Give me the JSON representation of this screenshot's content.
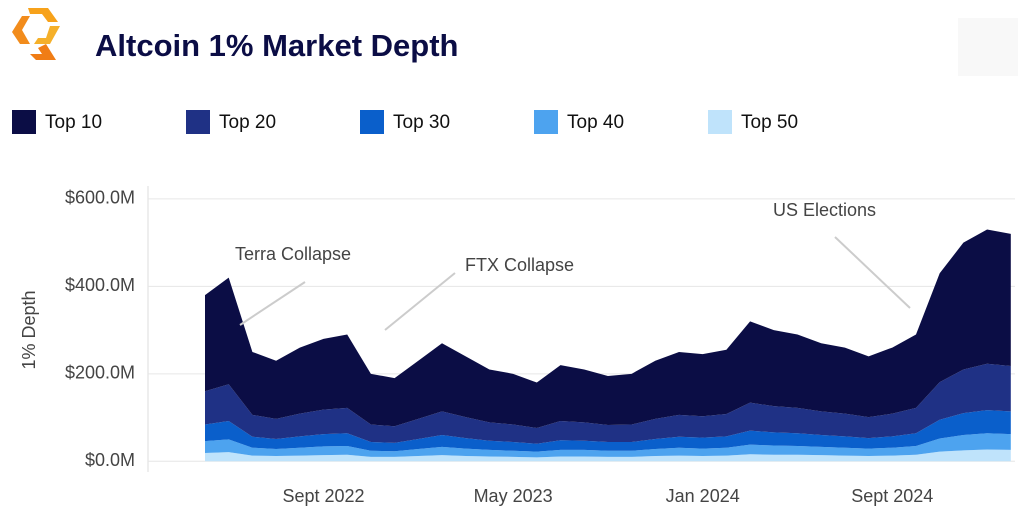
{
  "chart_data": {
    "type": "stacked_area",
    "title": "Altcoin 1% Market Depth",
    "y_label": "1% Depth",
    "x": [
      "2022-04",
      "2022-05",
      "2022-06",
      "2022-07",
      "2022-08",
      "2022-09",
      "2022-10",
      "2022-11",
      "2022-12",
      "2023-01",
      "2023-02",
      "2023-03",
      "2023-04",
      "2023-05",
      "2023-06",
      "2023-07",
      "2023-08",
      "2023-09",
      "2023-10",
      "2023-11",
      "2023-12",
      "2024-01",
      "2024-02",
      "2024-03",
      "2024-04",
      "2024-05",
      "2024-06",
      "2024-07",
      "2024-08",
      "2024-09",
      "2024-10",
      "2024-11",
      "2024-12",
      "2025-01",
      "2025-02"
    ],
    "series": [
      {
        "name": "Top 10",
        "color": "#0b0d45",
        "values": [
          220,
          244,
          144,
          133,
          151,
          162,
          168,
          116,
          110,
          133,
          156,
          139,
          121,
          116,
          104,
          128,
          121,
          112,
          116,
          133,
          144,
          142,
          147,
          186,
          174,
          168,
          156,
          151,
          139,
          151,
          168,
          249,
          290,
          307,
          302
        ]
      },
      {
        "name": "Top 20",
        "color": "#1f3185",
        "values": [
          76,
          84,
          50,
          46,
          52,
          56,
          58,
          40,
          38,
          46,
          54,
          48,
          42,
          40,
          36,
          44,
          42,
          39,
          40,
          46,
          50,
          49,
          51,
          64,
          60,
          58,
          54,
          52,
          48,
          52,
          58,
          86,
          100,
          106,
          104
        ]
      },
      {
        "name": "Top 30",
        "color": "#0a5fcb",
        "values": [
          38,
          42,
          25,
          23,
          26,
          28,
          29,
          20,
          19,
          23,
          27,
          24,
          21,
          20,
          18,
          22,
          21,
          20,
          20,
          23,
          25,
          25,
          26,
          32,
          30,
          29,
          27,
          26,
          24,
          26,
          29,
          43,
          50,
          53,
          52
        ]
      },
      {
        "name": "Top 40",
        "color": "#4da3ef",
        "values": [
          27,
          29,
          18,
          16,
          18,
          20,
          20,
          14,
          13,
          16,
          19,
          17,
          15,
          14,
          13,
          15,
          15,
          14,
          14,
          16,
          18,
          17,
          18,
          22,
          21,
          20,
          19,
          18,
          17,
          18,
          20,
          30,
          35,
          37,
          36
        ]
      },
      {
        "name": "Top 50",
        "color": "#bfe3fb",
        "values": [
          19,
          21,
          13,
          12,
          13,
          14,
          15,
          10,
          10,
          12,
          14,
          12,
          11,
          10,
          9,
          11,
          11,
          10,
          10,
          12,
          13,
          12,
          13,
          16,
          15,
          15,
          14,
          13,
          12,
          13,
          15,
          22,
          25,
          27,
          26
        ]
      }
    ],
    "ylim": [
      -20,
      625
    ],
    "yticks": [
      {
        "value": 0,
        "label": "$0.0M"
      },
      {
        "value": 200,
        "label": "$200.0M"
      },
      {
        "value": 400,
        "label": "$400.0M"
      },
      {
        "value": 600,
        "label": "$600.0M"
      }
    ],
    "xticks": [
      {
        "value": "2022-09",
        "label": "Sept 2022"
      },
      {
        "value": "2023-05",
        "label": "May 2023"
      },
      {
        "value": "2024-01",
        "label": "Jan 2024"
      },
      {
        "value": "2024-09",
        "label": "Sept 2024"
      }
    ],
    "grid": true,
    "annotations": [
      {
        "text": "Terra Collapse"
      },
      {
        "text": "FTX Collapse"
      },
      {
        "text": "US Elections"
      }
    ]
  }
}
